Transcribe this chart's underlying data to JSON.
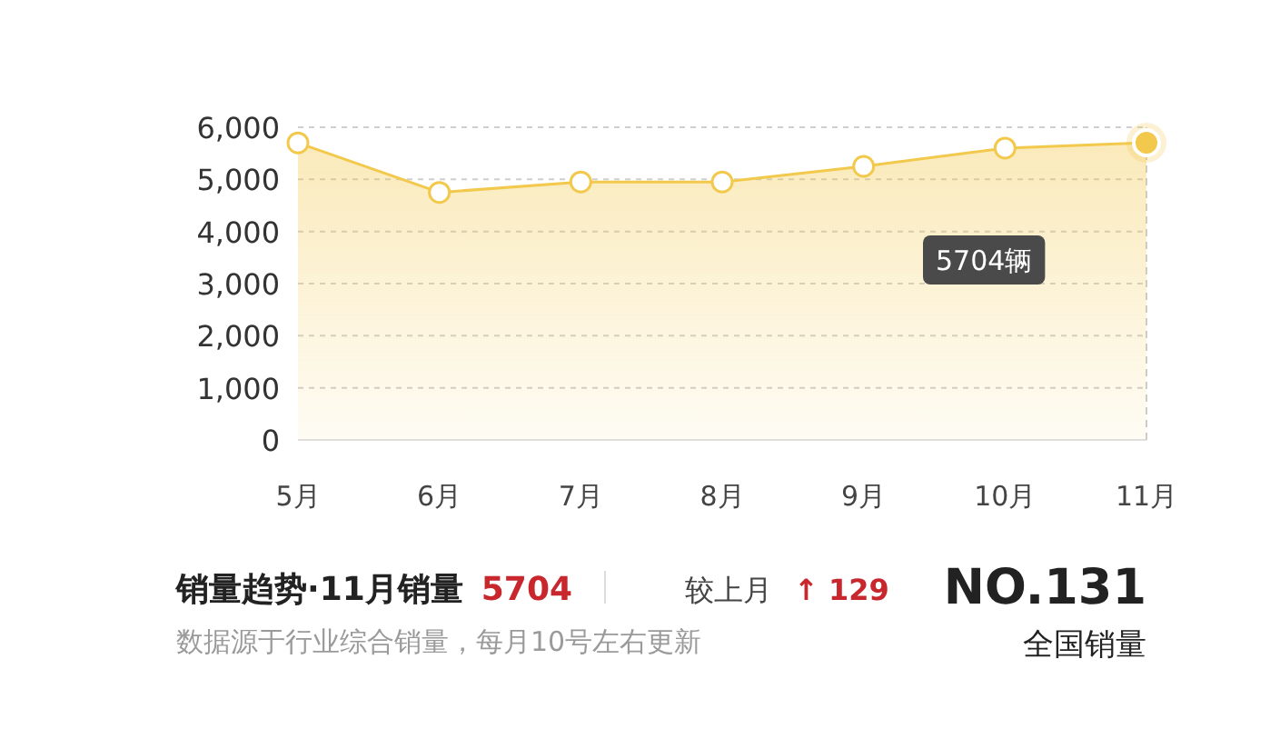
{
  "chart_data": {
    "type": "area",
    "title": "销量趋势·11月销量",
    "categories": [
      "5月",
      "6月",
      "7月",
      "8月",
      "9月",
      "10月",
      "11月"
    ],
    "series": [
      {
        "color": "#f2c94c",
        "values": [
          5700,
          4750,
          4950,
          4950,
          5250,
          5600,
          5704
        ]
      }
    ],
    "ylim": [
      0,
      6000
    ],
    "yticks": [
      0,
      {
        "value": 1000,
        "label": "1,000"
      },
      {
        "value": 2000,
        "label": "2,000"
      },
      {
        "value": 3000,
        "label": "3,000"
      },
      {
        "value": 4000,
        "label": "4,000"
      },
      {
        "value": 5000,
        "label": "5,000"
      },
      {
        "value": 6000,
        "label": "6,000"
      }
    ],
    "grid": "y",
    "marker": "circle",
    "line_style": "solid",
    "ref_lines": [
      {
        "axis": "x",
        "value": "11月",
        "color": "#cccccc",
        "line_style": "dashed"
      }
    ],
    "annotations": [
      "5704",
      "较上月",
      "↑ 129",
      "NO.131",
      "全国销量",
      "数据源于行业综合销量，每月10号左右更新",
      "5704辆"
    ]
  }
}
